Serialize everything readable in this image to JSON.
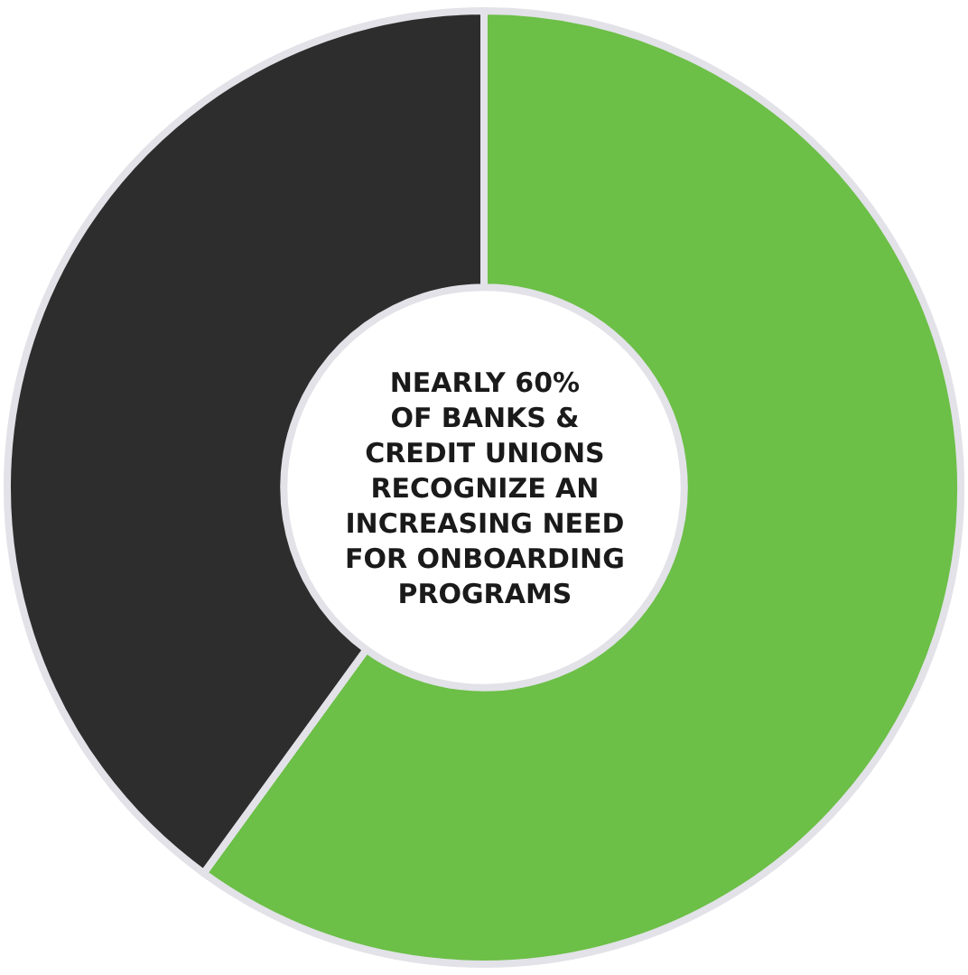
{
  "chart_data": {
    "type": "donut",
    "categories": [
      null,
      null
    ],
    "values": [
      60,
      40
    ],
    "colors": [
      "#6cbf47",
      "#2d2d2d"
    ],
    "annotations": [
      "NEARLY 60%\nOF BANKS &\nCREDIT UNIONS\nRECOGNIZE AN\nINCREASING NEED\nFOR ONBOARDING\nPROGRAMS"
    ],
    "legend": false
  }
}
